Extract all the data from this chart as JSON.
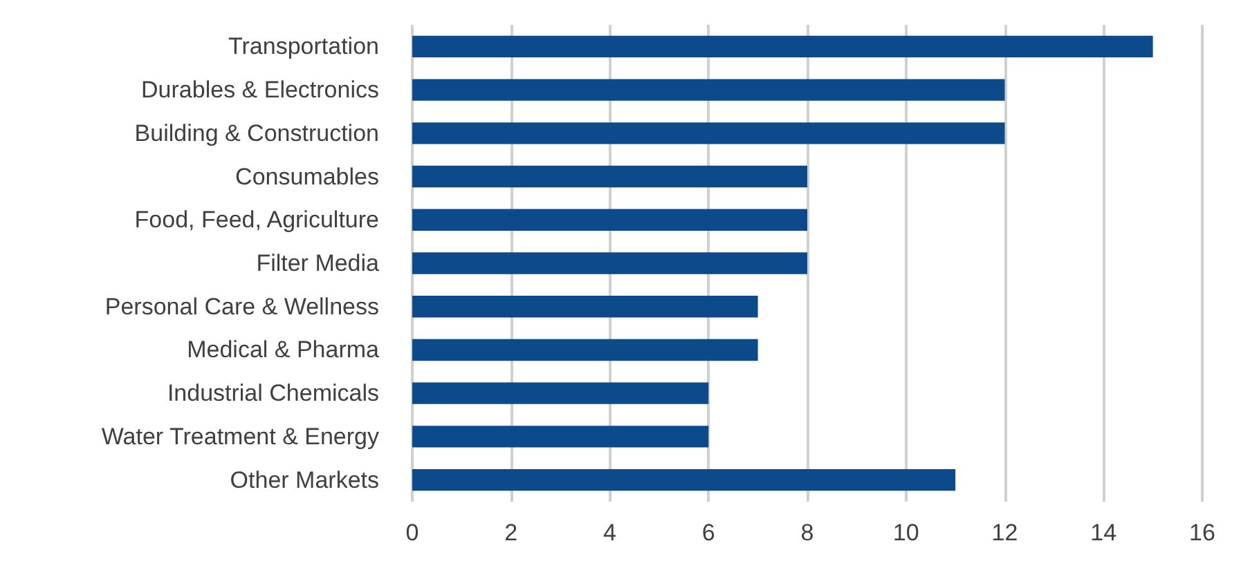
{
  "chart_data": {
    "type": "bar",
    "orientation": "horizontal",
    "categories": [
      "Transportation",
      "Durables & Electronics",
      "Building & Construction",
      "Consumables",
      "Food, Feed, Agriculture",
      "Filter Media",
      "Personal Care & Wellness",
      "Medical & Pharma",
      "Industrial Chemicals",
      "Water Treatment & Energy",
      "Other Markets"
    ],
    "values": [
      15,
      12,
      12,
      8,
      8,
      8,
      7,
      7,
      6,
      6,
      11
    ],
    "color": "#0d4a8c",
    "xlim": [
      0,
      16
    ],
    "xticks": [
      0,
      2,
      4,
      6,
      8,
      10,
      12,
      14,
      16
    ],
    "grid": "x"
  }
}
